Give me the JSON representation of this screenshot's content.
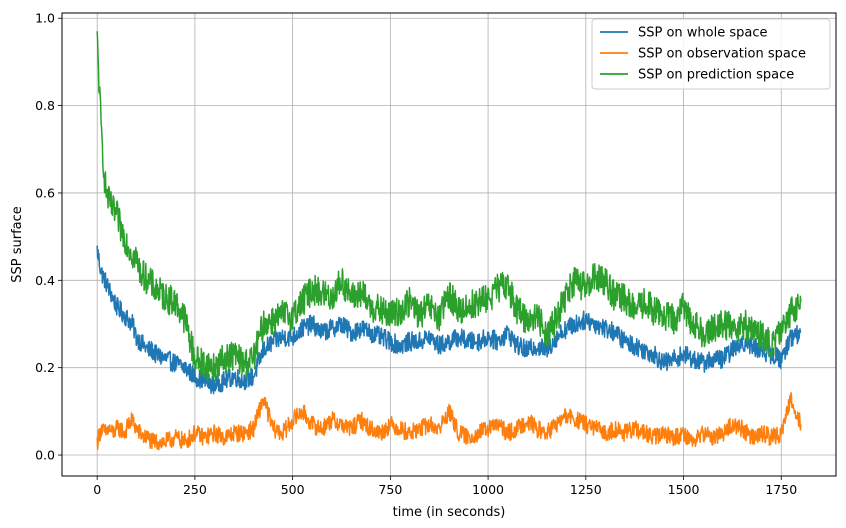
{
  "chart_data": {
    "type": "line",
    "title": "",
    "xlabel": "time (in seconds)",
    "ylabel": "SSP surface",
    "xlim": [
      -90,
      1890
    ],
    "ylim": [
      -0.048,
      1.012
    ],
    "xticks": [
      0,
      250,
      500,
      750,
      1000,
      1250,
      1500,
      1750
    ],
    "yticks": [
      0.0,
      0.2,
      0.4,
      0.6,
      0.8,
      1.0
    ],
    "xtick_labels": [
      "0",
      "250",
      "500",
      "750",
      "1000",
      "1250",
      "1500",
      "1750"
    ],
    "ytick_labels": [
      "0.0",
      "0.2",
      "0.4",
      "0.6",
      "0.8",
      "1.0"
    ],
    "grid": true,
    "legend_position": "top-right",
    "series": [
      {
        "name": "SSP on whole space",
        "color": "#1f77b4",
        "x": [
          0,
          10,
          20,
          30,
          40,
          50,
          60,
          70,
          80,
          90,
          100,
          110,
          120,
          130,
          140,
          150,
          175,
          200,
          225,
          250,
          275,
          300,
          325,
          350,
          375,
          400,
          425,
          450,
          475,
          500,
          525,
          550,
          575,
          600,
          625,
          650,
          675,
          700,
          725,
          750,
          775,
          800,
          825,
          850,
          875,
          900,
          925,
          950,
          975,
          1000,
          1025,
          1050,
          1075,
          1100,
          1125,
          1150,
          1175,
          1200,
          1225,
          1250,
          1275,
          1300,
          1325,
          1350,
          1375,
          1400,
          1425,
          1450,
          1475,
          1500,
          1525,
          1550,
          1575,
          1600,
          1625,
          1650,
          1675,
          1700,
          1725,
          1750,
          1775,
          1800
        ],
        "y": [
          0.47,
          0.42,
          0.4,
          0.38,
          0.36,
          0.34,
          0.33,
          0.32,
          0.31,
          0.3,
          0.27,
          0.26,
          0.25,
          0.24,
          0.24,
          0.23,
          0.22,
          0.21,
          0.2,
          0.18,
          0.17,
          0.16,
          0.17,
          0.18,
          0.17,
          0.18,
          0.24,
          0.26,
          0.27,
          0.27,
          0.29,
          0.3,
          0.28,
          0.29,
          0.3,
          0.28,
          0.29,
          0.28,
          0.27,
          0.26,
          0.25,
          0.26,
          0.26,
          0.27,
          0.25,
          0.26,
          0.27,
          0.26,
          0.26,
          0.27,
          0.26,
          0.28,
          0.25,
          0.24,
          0.25,
          0.24,
          0.27,
          0.29,
          0.3,
          0.31,
          0.3,
          0.29,
          0.28,
          0.26,
          0.25,
          0.24,
          0.23,
          0.21,
          0.22,
          0.23,
          0.22,
          0.21,
          0.22,
          0.22,
          0.24,
          0.26,
          0.25,
          0.24,
          0.23,
          0.22,
          0.27,
          0.28
        ]
      },
      {
        "name": "SSP on observation space",
        "color": "#ff7f0e",
        "x": [
          0,
          10,
          20,
          30,
          40,
          50,
          60,
          70,
          80,
          90,
          100,
          110,
          120,
          130,
          140,
          150,
          175,
          200,
          225,
          250,
          275,
          300,
          325,
          350,
          375,
          400,
          425,
          450,
          475,
          500,
          525,
          550,
          575,
          600,
          625,
          650,
          675,
          700,
          725,
          750,
          775,
          800,
          825,
          850,
          875,
          900,
          925,
          950,
          975,
          1000,
          1025,
          1050,
          1075,
          1100,
          1125,
          1150,
          1175,
          1200,
          1225,
          1250,
          1275,
          1300,
          1325,
          1350,
          1375,
          1400,
          1425,
          1450,
          1475,
          1500,
          1525,
          1550,
          1575,
          1600,
          1625,
          1650,
          1675,
          1700,
          1725,
          1750,
          1775,
          1800
        ],
        "y": [
          0.03,
          0.06,
          0.05,
          0.06,
          0.05,
          0.06,
          0.06,
          0.05,
          0.07,
          0.08,
          0.06,
          0.05,
          0.04,
          0.04,
          0.03,
          0.03,
          0.03,
          0.04,
          0.03,
          0.05,
          0.04,
          0.05,
          0.04,
          0.05,
          0.05,
          0.06,
          0.13,
          0.06,
          0.05,
          0.08,
          0.1,
          0.07,
          0.06,
          0.08,
          0.07,
          0.06,
          0.08,
          0.06,
          0.05,
          0.07,
          0.06,
          0.05,
          0.06,
          0.07,
          0.06,
          0.1,
          0.05,
          0.04,
          0.05,
          0.06,
          0.07,
          0.05,
          0.06,
          0.08,
          0.06,
          0.05,
          0.07,
          0.09,
          0.08,
          0.07,
          0.06,
          0.05,
          0.06,
          0.05,
          0.06,
          0.05,
          0.04,
          0.05,
          0.04,
          0.05,
          0.03,
          0.05,
          0.04,
          0.05,
          0.07,
          0.06,
          0.04,
          0.05,
          0.04,
          0.05,
          0.13,
          0.07
        ]
      },
      {
        "name": "SSP on prediction space",
        "color": "#2ca02c",
        "x": [
          0,
          10,
          20,
          30,
          40,
          50,
          60,
          70,
          80,
          90,
          100,
          110,
          120,
          130,
          140,
          150,
          175,
          200,
          225,
          250,
          275,
          300,
          325,
          350,
          375,
          400,
          425,
          450,
          475,
          500,
          525,
          550,
          575,
          600,
          625,
          650,
          675,
          700,
          725,
          750,
          775,
          800,
          825,
          850,
          875,
          900,
          925,
          950,
          975,
          1000,
          1025,
          1050,
          1075,
          1100,
          1125,
          1150,
          1175,
          1200,
          1225,
          1250,
          1275,
          1300,
          1325,
          1350,
          1375,
          1400,
          1425,
          1450,
          1475,
          1500,
          1525,
          1550,
          1575,
          1600,
          1625,
          1650,
          1675,
          1700,
          1725,
          1750,
          1775,
          1800
        ],
        "y": [
          0.95,
          0.75,
          0.62,
          0.58,
          0.56,
          0.55,
          0.52,
          0.5,
          0.48,
          0.46,
          0.45,
          0.42,
          0.41,
          0.4,
          0.39,
          0.38,
          0.36,
          0.35,
          0.31,
          0.22,
          0.21,
          0.2,
          0.22,
          0.23,
          0.21,
          0.22,
          0.3,
          0.31,
          0.32,
          0.32,
          0.35,
          0.38,
          0.37,
          0.36,
          0.4,
          0.36,
          0.37,
          0.34,
          0.33,
          0.32,
          0.33,
          0.35,
          0.32,
          0.34,
          0.31,
          0.37,
          0.33,
          0.34,
          0.35,
          0.36,
          0.38,
          0.39,
          0.33,
          0.31,
          0.32,
          0.28,
          0.31,
          0.37,
          0.4,
          0.38,
          0.41,
          0.4,
          0.36,
          0.36,
          0.33,
          0.35,
          0.33,
          0.32,
          0.31,
          0.34,
          0.3,
          0.28,
          0.29,
          0.3,
          0.29,
          0.3,
          0.29,
          0.27,
          0.25,
          0.28,
          0.33,
          0.35
        ]
      }
    ]
  }
}
